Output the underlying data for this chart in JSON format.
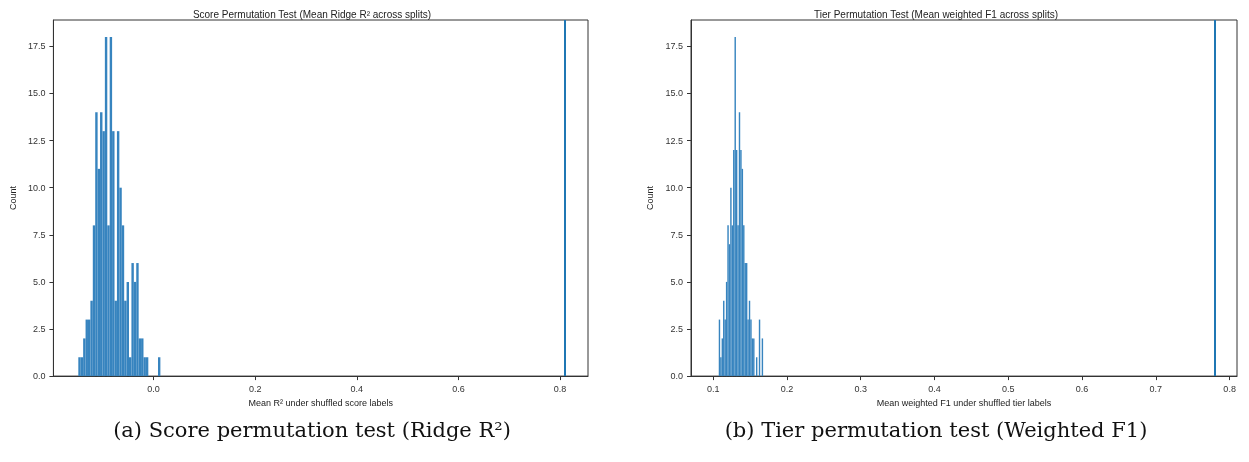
{
  "chart_data": [
    {
      "type": "histogram",
      "title": "Score Permutation Test (Mean Ridge R² across splits)",
      "xlabel": "Mean R² under shuffled score labels",
      "ylabel": "Count",
      "color": "#3784bf",
      "bins": [
        -0.148,
        -0.14325,
        -0.1385,
        -0.13375,
        -0.129,
        -0.12425,
        -0.1195,
        -0.11475,
        -0.11,
        -0.10525,
        -0.1005,
        -0.09575,
        -0.091,
        -0.08625,
        -0.0815,
        -0.07675,
        -0.072,
        -0.06725,
        -0.0625,
        -0.05775,
        -0.053,
        -0.04825,
        -0.0435,
        -0.03875,
        -0.034,
        -0.02925,
        -0.0245,
        -0.01975,
        -0.015,
        -0.01025,
        -0.0055,
        -0.00075,
        0.004,
        0.00875,
        0.0135
      ],
      "values": [
        1,
        1,
        2,
        3,
        3,
        4,
        8,
        14,
        11,
        14,
        13,
        18,
        8,
        18,
        13,
        4,
        13,
        10,
        8,
        4,
        5,
        1,
        6,
        5,
        6,
        2,
        2,
        1,
        1,
        0,
        0,
        0,
        0,
        1
      ],
      "xlim": [
        -0.197,
        0.855
      ],
      "xticks": [
        {
          "value": 0,
          "label": "0.0"
        },
        0.2,
        0.4,
        0.6,
        0.8
      ],
      "ylim": [
        0,
        18.9
      ],
      "yticks": [
        {
          "value": 0,
          "label": "0.0"
        },
        2.5,
        {
          "value": 5,
          "label": "5.0"
        },
        7.5,
        {
          "value": 10,
          "label": "10.0"
        },
        12.5,
        {
          "value": 15,
          "label": "15.0"
        },
        17.5
      ],
      "ref_lines": [
        {
          "axis": "x",
          "value": 0.807,
          "color": "#1f77b4"
        }
      ],
      "annotations": [
        "(a) Score permutation test (Ridge R²)"
      ]
    },
    {
      "type": "histogram",
      "title": "Tier Permutation Test (Mean weighted F1 across splits)",
      "xlabel": "Mean weighted F1 under shuffled tier labels",
      "ylabel": "Count",
      "color": "#3784bf",
      "bins": [
        0.1076,
        0.10954,
        0.11148,
        0.11342,
        0.11536,
        0.1173,
        0.11924,
        0.12118,
        0.12312,
        0.12506,
        0.127,
        0.12894,
        0.13088,
        0.13282,
        0.13476,
        0.1367,
        0.13864,
        0.14058,
        0.14252,
        0.14446,
        0.1464,
        0.14834,
        0.15028,
        0.15222,
        0.15416,
        0.1561,
        0.15804,
        0.15998,
        0.16192,
        0.16386,
        0.1658,
        0.16774
      ],
      "values": [
        3,
        1,
        2,
        4,
        3,
        5,
        8,
        7,
        10,
        8,
        12,
        18,
        12,
        8,
        14,
        12,
        11,
        8,
        6,
        6,
        3,
        4,
        3,
        2,
        2,
        0,
        1,
        0,
        3,
        0,
        2
      ],
      "xlim": [
        0.07,
        0.81
      ],
      "xticks": [
        0.1,
        0.2,
        0.3,
        0.4,
        0.5,
        0.6,
        0.7,
        0.8
      ],
      "ylim": [
        0,
        18.9
      ],
      "yticks": [
        {
          "value": 0,
          "label": "0.0"
        },
        2.5,
        {
          "value": 5,
          "label": "5.0"
        },
        7.5,
        {
          "value": 10,
          "label": "10.0"
        },
        12.5,
        {
          "value": 15,
          "label": "15.0"
        },
        17.5
      ],
      "ref_lines": [
        {
          "axis": "x",
          "value": 0.78,
          "color": "#1f77b4"
        }
      ],
      "annotations": [
        "(b) Tier permutation test (Weighted F1)"
      ]
    }
  ]
}
